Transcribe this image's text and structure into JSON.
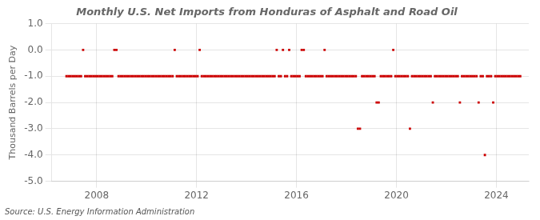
{
  "chart_data": {
    "type": "scatter",
    "title": "Monthly U.S. Net Imports from Honduras of Asphalt and Road Oil",
    "ylabel": "Thousand Barrels per Day",
    "annotation": "Source: U.S. Energy Information Administration",
    "color": "#cc0000",
    "marker": "square",
    "grid": true,
    "xlim": [
      2006.2,
      2025.3
    ],
    "xticks": [
      2008,
      2012,
      2016,
      2020,
      2024
    ],
    "ylim": [
      -5.0,
      1.0
    ],
    "yticks": [
      {
        "value": 1.0,
        "label": "1.0"
      },
      {
        "value": 0.0,
        "label": "0.0"
      },
      {
        "value": -1.0,
        "label": "-1.0"
      },
      {
        "value": -2.0,
        "label": "-2.0"
      },
      {
        "value": -3.0,
        "label": "-3.0"
      },
      {
        "value": -4.0,
        "label": "-4.0"
      },
      {
        "value": -5.0,
        "label": "-5.0"
      }
    ],
    "x": [
      2006.7916666666667,
      2006.875,
      2006.9583333333333,
      2007.0416666666667,
      2007.125,
      2007.2083333333333,
      2007.2916666666667,
      2007.375,
      2007.4583333333333,
      2007.5416666666667,
      2007.625,
      2007.7083333333333,
      2007.7916666666667,
      2007.875,
      2007.9583333333333,
      2008.0416666666667,
      2008.125,
      2008.2083333333333,
      2008.2916666666667,
      2008.375,
      2008.4583333333333,
      2008.5416666666667,
      2008.625,
      2008.7083333333333,
      2008.7916666666667,
      2008.875,
      2008.9583333333333,
      2009.0416666666667,
      2009.125,
      2009.2083333333333,
      2009.2916666666667,
      2009.375,
      2009.4583333333333,
      2009.5416666666667,
      2009.625,
      2009.7083333333333,
      2009.7916666666667,
      2009.875,
      2009.9583333333333,
      2010.0416666666667,
      2010.125,
      2010.2083333333333,
      2010.2916666666667,
      2010.375,
      2010.4583333333333,
      2010.5416666666667,
      2010.625,
      2010.7083333333333,
      2010.7916666666667,
      2010.875,
      2010.9583333333333,
      2011.0416666666667,
      2011.125,
      2011.2083333333333,
      2011.2916666666667,
      2011.375,
      2011.4583333333333,
      2011.5416666666667,
      2011.625,
      2011.7083333333333,
      2011.7916666666667,
      2011.875,
      2011.9583333333333,
      2012.0416666666667,
      2012.125,
      2012.2083333333333,
      2012.2916666666667,
      2012.375,
      2012.4583333333333,
      2012.5416666666667,
      2012.625,
      2012.7083333333333,
      2012.7916666666667,
      2012.875,
      2012.9583333333333,
      2013.0416666666667,
      2013.125,
      2013.2083333333333,
      2013.2916666666667,
      2013.375,
      2013.4583333333333,
      2013.5416666666667,
      2013.625,
      2013.7083333333333,
      2013.7916666666667,
      2013.875,
      2013.9583333333333,
      2014.0416666666667,
      2014.125,
      2014.2083333333333,
      2014.2916666666667,
      2014.375,
      2014.4583333333333,
      2014.5416666666667,
      2014.625,
      2014.7083333333333,
      2014.7916666666667,
      2014.875,
      2014.9583333333333,
      2015.0416666666667,
      2015.125,
      2015.2083333333333,
      2015.2916666666667,
      2015.375,
      2015.4583333333333,
      2015.5416666666667,
      2015.625,
      2015.7083333333333,
      2015.7916666666667,
      2015.875,
      2015.9583333333333,
      2016.0416666666667,
      2016.125,
      2016.2083333333333,
      2016.2916666666667,
      2016.375,
      2016.4583333333333,
      2016.5416666666667,
      2016.625,
      2016.7083333333333,
      2016.7916666666667,
      2016.875,
      2016.9583333333333,
      2017.0416666666667,
      2017.125,
      2017.2083333333333,
      2017.2916666666667,
      2017.375,
      2017.4583333333333,
      2017.5416666666667,
      2017.625,
      2017.7083333333333,
      2017.7916666666667,
      2017.875,
      2017.9583333333333,
      2018.0416666666667,
      2018.125,
      2018.2083333333333,
      2018.2916666666667,
      2018.375,
      2018.4583333333333,
      2018.5416666666667,
      2018.625,
      2018.7083333333333,
      2018.7916666666667,
      2018.875,
      2018.9583333333333,
      2019.0416666666667,
      2019.125,
      2019.2083333333333,
      2019.2916666666667,
      2019.375,
      2019.4583333333333,
      2019.5416666666667,
      2019.625,
      2019.7083333333333,
      2019.7916666666667,
      2019.875,
      2019.9583333333333,
      2020.0416666666667,
      2020.125,
      2020.2083333333333,
      2020.2916666666667,
      2020.375,
      2020.4583333333333,
      2020.5416666666667,
      2020.625,
      2020.7083333333333,
      2020.7916666666667,
      2020.875,
      2020.9583333333333,
      2021.0416666666667,
      2021.125,
      2021.2083333333333,
      2021.2916666666667,
      2021.375,
      2021.4583333333333,
      2021.5416666666667,
      2021.625,
      2021.7083333333333,
      2021.7916666666667,
      2021.875,
      2021.9583333333333,
      2022.0416666666667,
      2022.125,
      2022.2083333333333,
      2022.2916666666667,
      2022.375,
      2022.4583333333333,
      2022.5416666666667,
      2022.625,
      2022.7083333333333,
      2022.7916666666667,
      2022.875,
      2022.9583333333333,
      2023.0416666666667,
      2023.125,
      2023.2083333333333,
      2023.2916666666667,
      2023.375,
      2023.4583333333333,
      2023.5416666666667,
      2023.625,
      2023.7083333333333,
      2023.7916666666667,
      2023.875,
      2023.9583333333333,
      2024.0416666666667,
      2024.125,
      2024.2083333333333,
      2024.2916666666667,
      2024.375,
      2024.4583333333333,
      2024.5416666666667,
      2024.625,
      2024.7083333333333,
      2024.7916666666667,
      2024.875,
      2024.9583333333333
    ],
    "values": [
      -1,
      -1,
      -1,
      -1,
      -1,
      -1,
      -1,
      -1,
      0,
      -1,
      -1,
      -1,
      -1,
      -1,
      -1,
      -1,
      -1,
      -1,
      -1,
      -1,
      -1,
      -1,
      -1,
      0,
      0,
      -1,
      -1,
      -1,
      -1,
      -1,
      -1,
      -1,
      -1,
      -1,
      -1,
      -1,
      -1,
      -1,
      -1,
      -1,
      -1,
      -1,
      -1,
      -1,
      -1,
      -1,
      -1,
      -1,
      -1,
      -1,
      -1,
      -1,
      0,
      -1,
      -1,
      -1,
      -1,
      -1,
      -1,
      -1,
      -1,
      -1,
      -1,
      -1,
      0,
      -1,
      -1,
      -1,
      -1,
      -1,
      -1,
      -1,
      -1,
      -1,
      -1,
      -1,
      -1,
      -1,
      -1,
      -1,
      -1,
      -1,
      -1,
      -1,
      -1,
      -1,
      -1,
      -1,
      -1,
      -1,
      -1,
      -1,
      -1,
      -1,
      -1,
      -1,
      -1,
      -1,
      -1,
      -1,
      -1,
      0,
      -1,
      -1,
      0,
      -1,
      -1,
      0,
      -1,
      -1,
      -1,
      -1,
      -1,
      0,
      0,
      -1,
      -1,
      -1,
      -1,
      -1,
      -1,
      -1,
      -1,
      -1,
      0,
      -1,
      -1,
      -1,
      -1,
      -1,
      -1,
      -1,
      -1,
      -1,
      -1,
      -1,
      -1,
      -1,
      -1,
      -1,
      -3,
      -3,
      -1,
      -1,
      -1,
      -1,
      -1,
      -1,
      -1,
      -2,
      -2,
      -1,
      -1,
      -1,
      -1,
      -1,
      -1,
      0,
      -1,
      -1,
      -1,
      -1,
      -1,
      -1,
      -1,
      -3,
      -1,
      -1,
      -1,
      -1,
      -1,
      -1,
      -1,
      -1,
      -1,
      -1,
      -2,
      -1,
      -1,
      -1,
      -1,
      -1,
      -1,
      -1,
      -1,
      -1,
      -1,
      -1,
      -1,
      -2,
      -1,
      -1,
      -1,
      -1,
      -1,
      -1,
      -1,
      -1,
      -2,
      -1,
      -1,
      -4,
      -1,
      -1,
      -1,
      -2,
      -1,
      -1,
      -1,
      -1,
      -1,
      -1,
      -1,
      -1,
      -1,
      -1,
      -1,
      -1,
      -1
    ]
  }
}
